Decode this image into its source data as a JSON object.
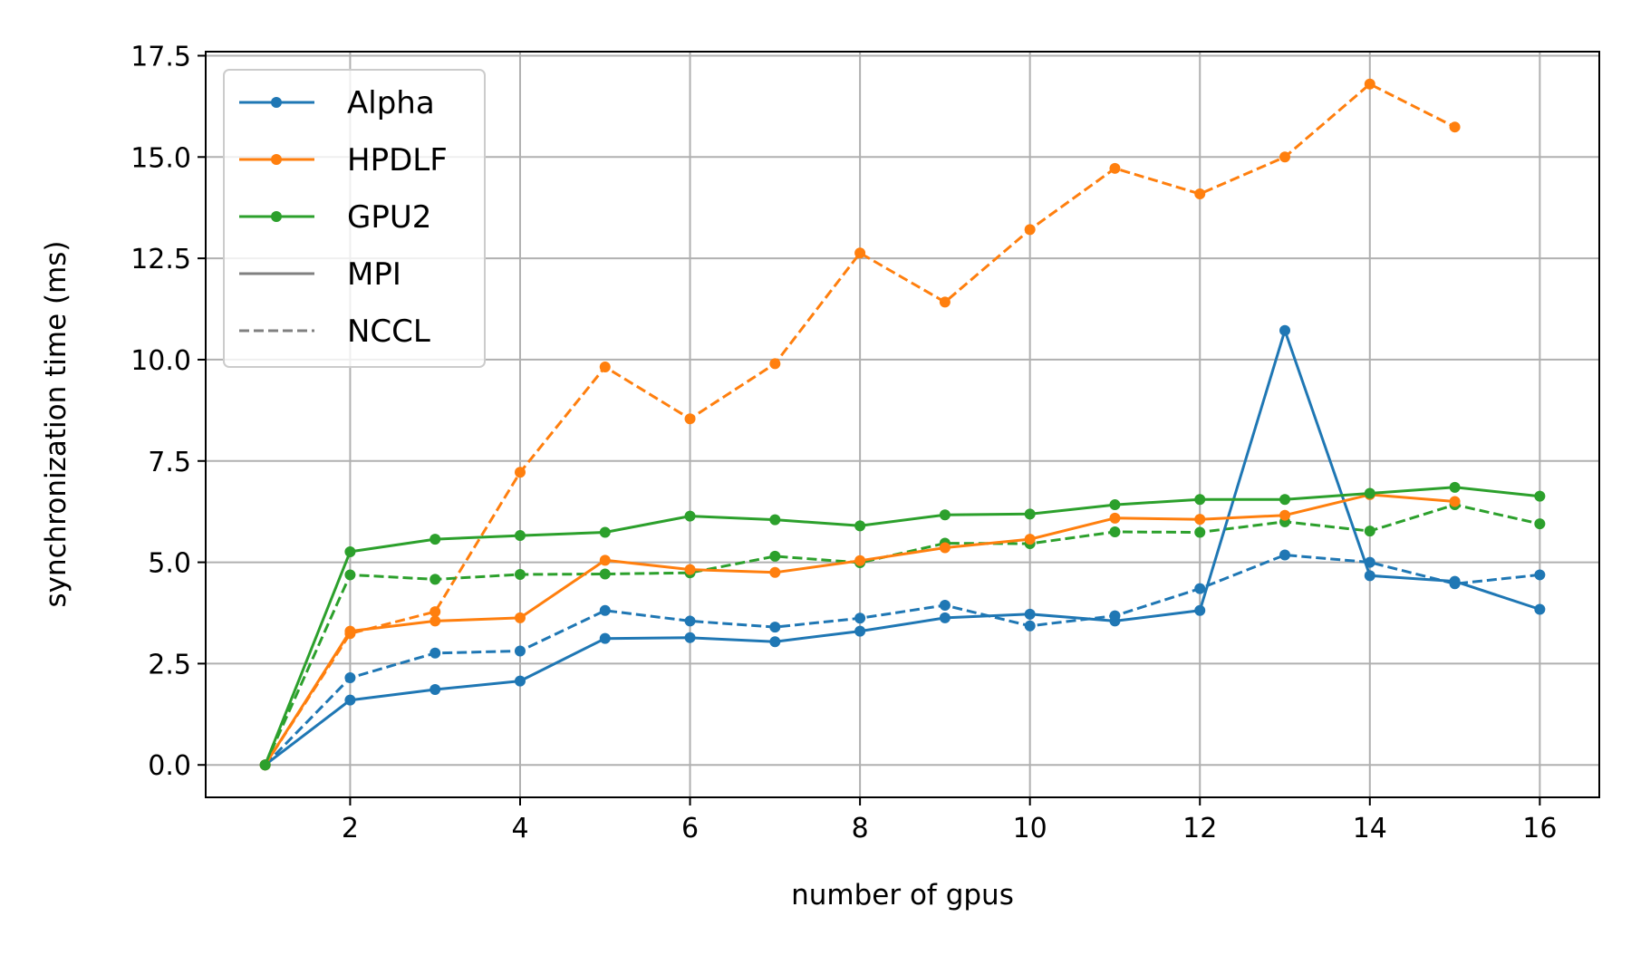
{
  "chart_data": {
    "type": "line",
    "xlabel": "number of gpus",
    "ylabel": "synchronization time (ms)",
    "xlim": [
      0.3,
      16.7
    ],
    "ylim": [
      -0.8,
      17.6
    ],
    "x_ticks": [
      2,
      4,
      6,
      8,
      10,
      12,
      14,
      16
    ],
    "x_tick_labels": [
      "2",
      "4",
      "6",
      "8",
      "10",
      "12",
      "14",
      "16"
    ],
    "y_ticks": [
      0,
      2.5,
      5,
      7.5,
      10,
      12.5,
      15,
      17.5
    ],
    "y_tick_labels": [
      "0.0",
      "2.5",
      "5.0",
      "7.5",
      "10.0",
      "12.5",
      "15.0",
      "17.5"
    ],
    "grid": true,
    "legend_position": "top-left",
    "legend": [
      {
        "label": "Alpha",
        "color": "#1f77b4",
        "style": "solid",
        "marker": true
      },
      {
        "label": "HPDLF",
        "color": "#ff7f0e",
        "style": "solid",
        "marker": true
      },
      {
        "label": "GPU2",
        "color": "#2ca02c",
        "style": "solid",
        "marker": true
      },
      {
        "label": "MPI",
        "color": "#808080",
        "style": "solid",
        "marker": false
      },
      {
        "label": "NCCL",
        "color": "#808080",
        "style": "dashed",
        "marker": false
      }
    ],
    "series": [
      {
        "system": "Alpha",
        "backend": "MPI",
        "color": "#1f77b4",
        "style": "solid",
        "x": [
          1,
          2,
          3,
          4,
          5,
          6,
          7,
          8,
          9,
          10,
          11,
          12,
          13,
          14,
          15,
          16
        ],
        "y": [
          0,
          1.6,
          1.86,
          2.07,
          3.12,
          3.14,
          3.04,
          3.3,
          3.63,
          3.72,
          3.55,
          3.81,
          10.72,
          4.67,
          4.53,
          3.84
        ]
      },
      {
        "system": "Alpha",
        "backend": "NCCL",
        "color": "#1f77b4",
        "style": "dashed",
        "x": [
          1,
          2,
          3,
          4,
          5,
          6,
          7,
          8,
          9,
          10,
          11,
          12,
          13,
          14,
          15,
          16
        ],
        "y": [
          0,
          2.15,
          2.76,
          2.81,
          3.81,
          3.55,
          3.4,
          3.62,
          3.94,
          3.43,
          3.68,
          4.35,
          5.18,
          5.0,
          4.47,
          4.69
        ]
      },
      {
        "system": "HPDLF",
        "backend": "MPI",
        "color": "#ff7f0e",
        "style": "solid",
        "x": [
          1,
          2,
          3,
          4,
          5,
          6,
          7,
          8,
          9,
          10,
          11,
          12,
          13,
          14,
          15
        ],
        "y": [
          0,
          3.3,
          3.55,
          3.63,
          5.05,
          4.82,
          4.75,
          5.04,
          5.36,
          5.57,
          6.09,
          6.06,
          6.16,
          6.67,
          6.5
        ]
      },
      {
        "system": "HPDLF",
        "backend": "NCCL",
        "color": "#ff7f0e",
        "style": "dashed",
        "x": [
          1,
          2,
          3,
          4,
          5,
          6,
          7,
          8,
          9,
          10,
          11,
          12,
          13,
          14,
          15
        ],
        "y": [
          0,
          3.24,
          3.78,
          7.22,
          9.82,
          8.54,
          9.9,
          12.63,
          11.42,
          13.21,
          14.72,
          14.09,
          15.0,
          16.8,
          15.74
        ]
      },
      {
        "system": "GPU2",
        "backend": "MPI",
        "color": "#2ca02c",
        "style": "solid",
        "x": [
          1,
          2,
          3,
          4,
          5,
          6,
          7,
          8,
          9,
          10,
          11,
          12,
          13,
          14,
          15,
          16
        ],
        "y": [
          0,
          5.26,
          5.57,
          5.66,
          5.74,
          6.14,
          6.05,
          5.9,
          6.17,
          6.19,
          6.42,
          6.55,
          6.55,
          6.7,
          6.85,
          6.63
        ]
      },
      {
        "system": "GPU2",
        "backend": "NCCL",
        "color": "#2ca02c",
        "style": "dashed",
        "x": [
          1,
          2,
          3,
          4,
          5,
          6,
          7,
          8,
          9,
          10,
          11,
          12,
          13,
          14,
          15,
          16
        ],
        "y": [
          0,
          4.69,
          4.58,
          4.7,
          4.71,
          4.74,
          5.15,
          4.99,
          5.47,
          5.46,
          5.75,
          5.74,
          6.0,
          5.77,
          6.42,
          5.95
        ]
      }
    ]
  }
}
